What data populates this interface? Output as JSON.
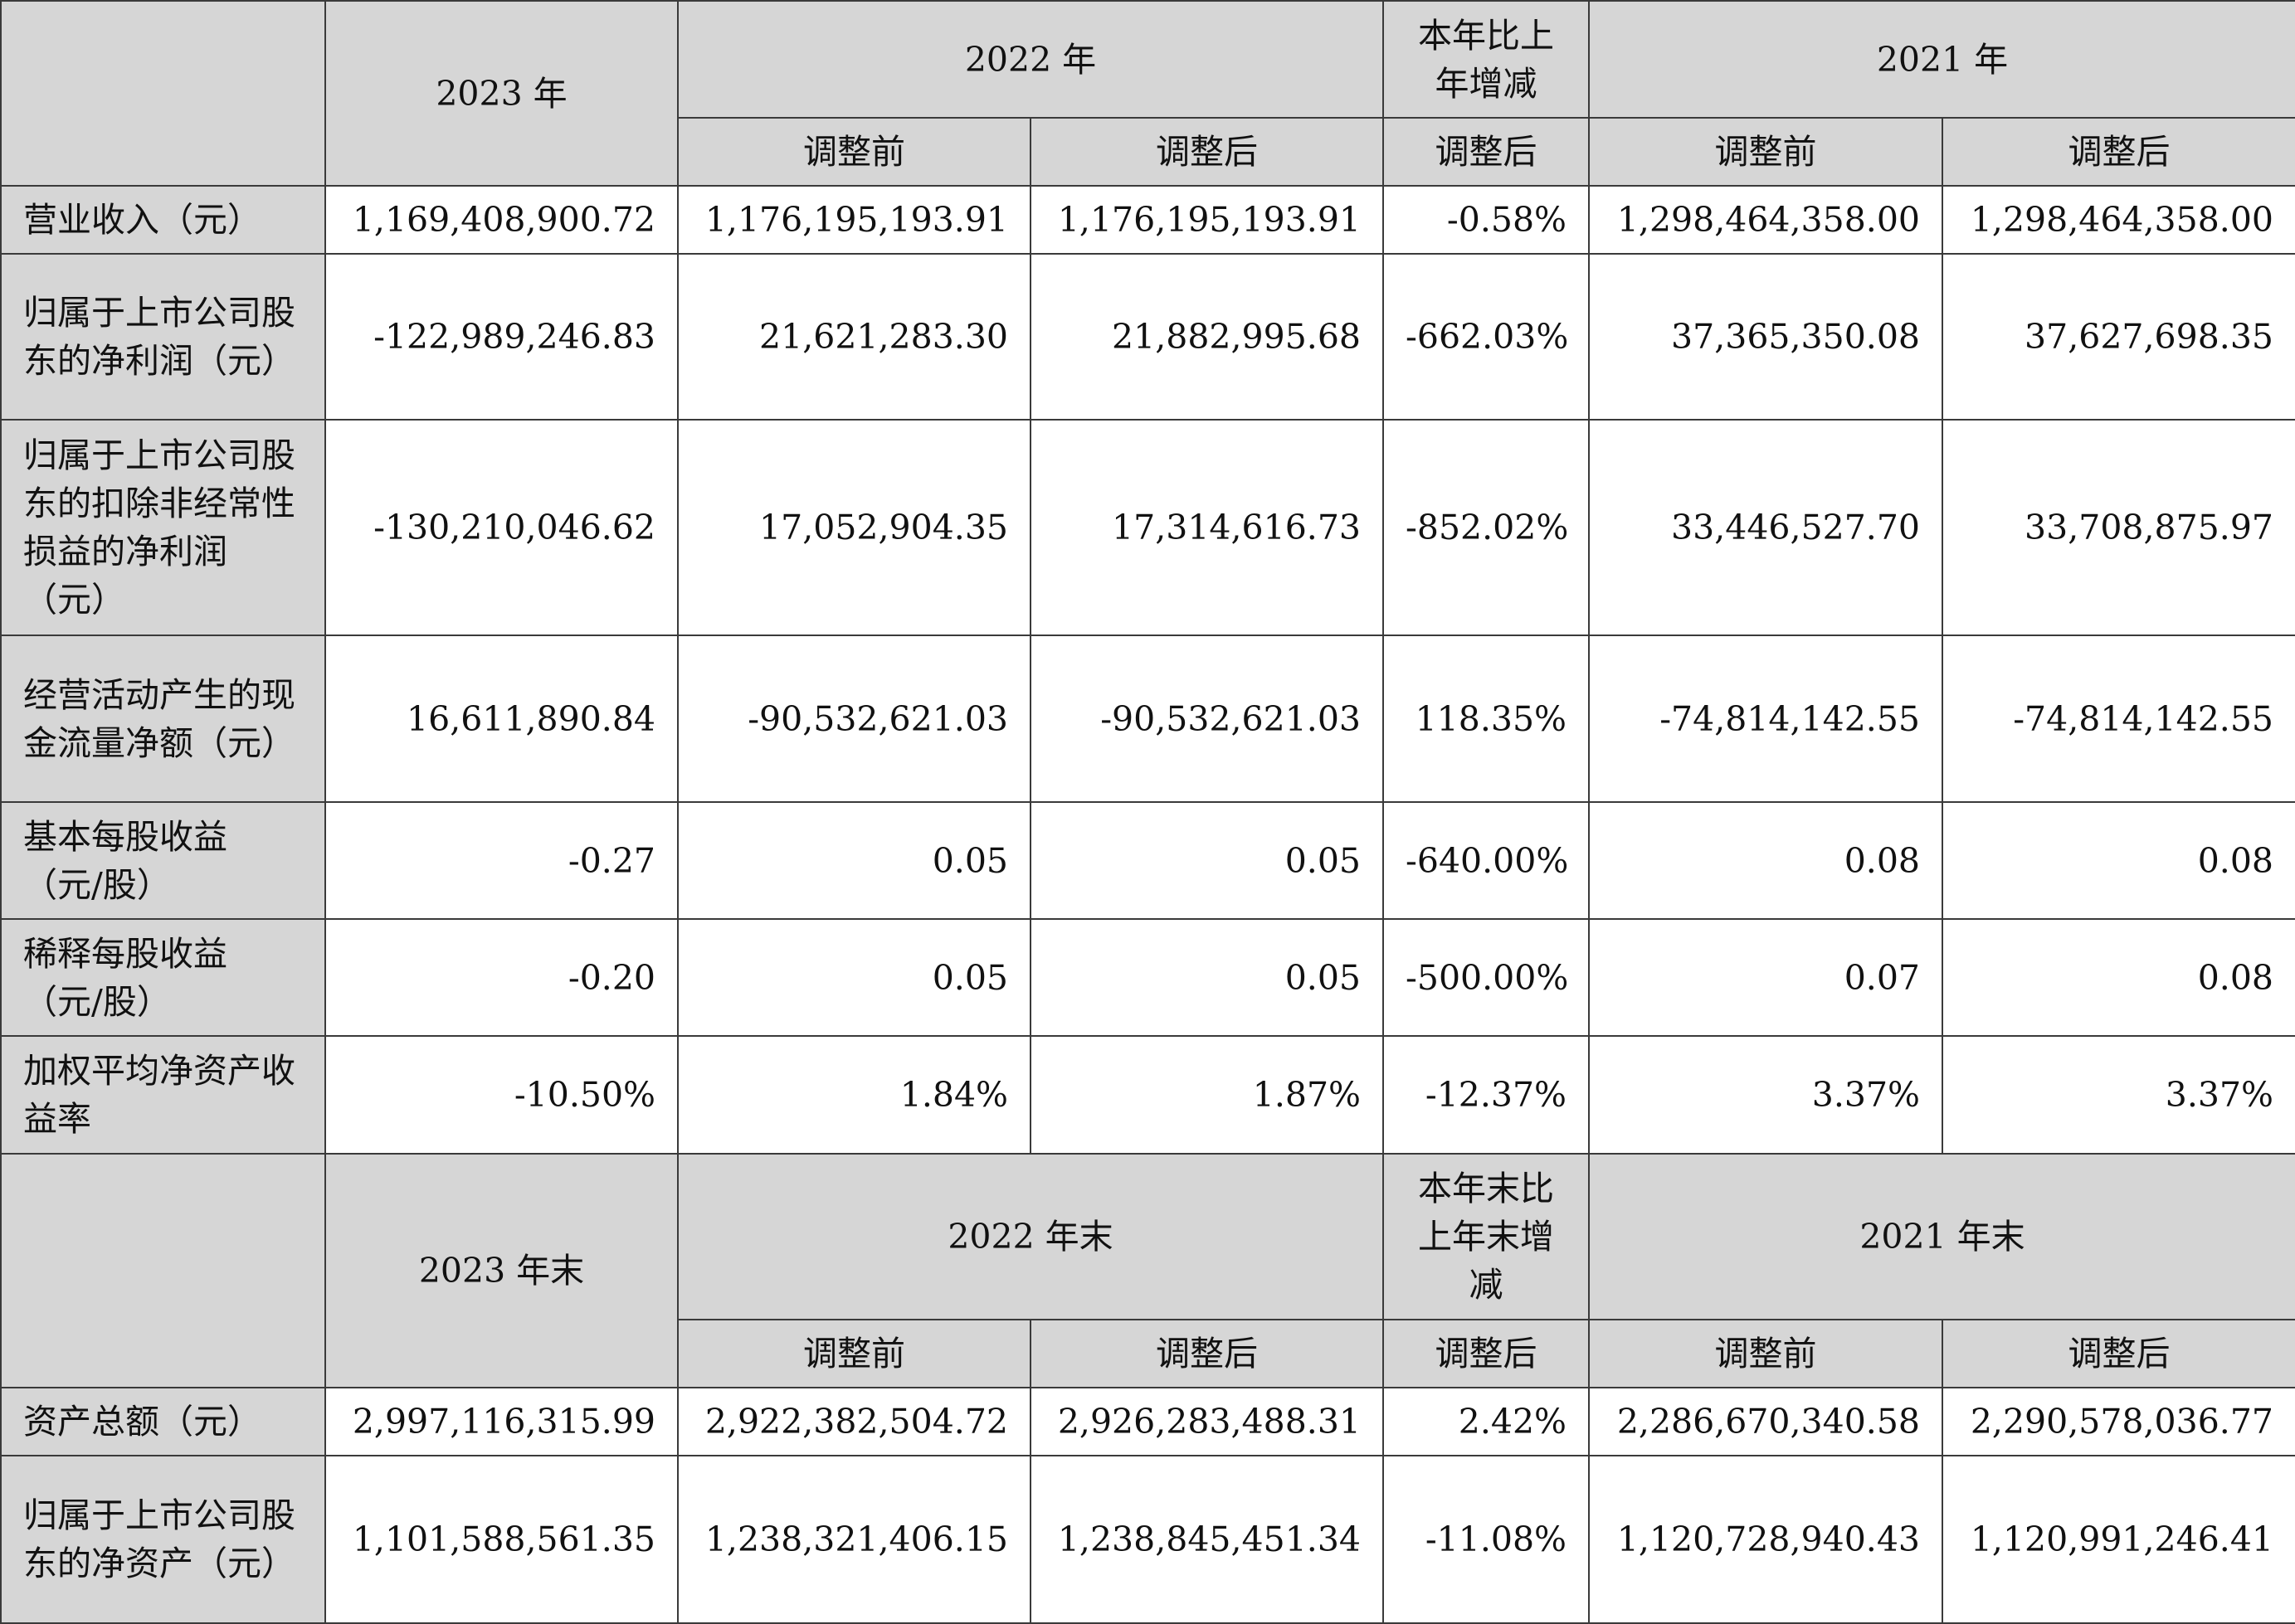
{
  "header1": {
    "year_2023": "2023 年",
    "year_2022": "2022 年",
    "yoy_change": "本年比上年增减",
    "year_2021": "2021 年",
    "before_adjust": "调整前",
    "after_adjust": "调整后"
  },
  "rows1": [
    {
      "label": "营业收入（元）",
      "v2023": "1,169,408,900.72",
      "v2022_before": "1,176,195,193.91",
      "v2022_after": "1,176,195,193.91",
      "change": "-0.58%",
      "v2021_before": "1,298,464,358.00",
      "v2021_after": "1,298,464,358.00"
    },
    {
      "label": "归属于上市公司股东的净利润（元）",
      "v2023": "-122,989,246.83",
      "v2022_before": "21,621,283.30",
      "v2022_after": "21,882,995.68",
      "change": "-662.03%",
      "v2021_before": "37,365,350.08",
      "v2021_after": "37,627,698.35"
    },
    {
      "label": "归属于上市公司股东的扣除非经常性损益的净利润（元）",
      "v2023": "-130,210,046.62",
      "v2022_before": "17,052,904.35",
      "v2022_after": "17,314,616.73",
      "change": "-852.02%",
      "v2021_before": "33,446,527.70",
      "v2021_after": "33,708,875.97"
    },
    {
      "label": "经营活动产生的现金流量净额（元）",
      "v2023": "16,611,890.84",
      "v2022_before": "-90,532,621.03",
      "v2022_after": "-90,532,621.03",
      "change": "118.35%",
      "v2021_before": "-74,814,142.55",
      "v2021_after": "-74,814,142.55"
    },
    {
      "label": "基本每股收益（元/股）",
      "v2023": "-0.27",
      "v2022_before": "0.05",
      "v2022_after": "0.05",
      "change": "-640.00%",
      "v2021_before": "0.08",
      "v2021_after": "0.08"
    },
    {
      "label": "稀释每股收益（元/股）",
      "v2023": "-0.20",
      "v2022_before": "0.05",
      "v2022_after": "0.05",
      "change": "-500.00%",
      "v2021_before": "0.07",
      "v2021_after": "0.08"
    },
    {
      "label": "加权平均净资产收益率",
      "v2023": "-10.50%",
      "v2022_before": "1.84%",
      "v2022_after": "1.87%",
      "change": "-12.37%",
      "v2021_before": "3.37%",
      "v2021_after": "3.37%"
    }
  ],
  "header2": {
    "year_2023_end": "2023 年末",
    "year_2022_end": "2022 年末",
    "yoy_change_end": "本年末比上年末增减",
    "year_2021_end": "2021 年末",
    "before_adjust": "调整前",
    "after_adjust": "调整后"
  },
  "rows2": [
    {
      "label": "资产总额（元）",
      "v2023": "2,997,116,315.99",
      "v2022_before": "2,922,382,504.72",
      "v2022_after": "2,926,283,488.31",
      "change": "2.42%",
      "v2021_before": "2,286,670,340.58",
      "v2021_after": "2,290,578,036.77"
    },
    {
      "label": "归属于上市公司股东的净资产（元）",
      "v2023": "1,101,588,561.35",
      "v2022_before": "1,238,321,406.15",
      "v2022_after": "1,238,845,451.34",
      "change": "-11.08%",
      "v2021_before": "1,120,728,940.43",
      "v2021_after": "1,120,991,246.41"
    }
  ]
}
